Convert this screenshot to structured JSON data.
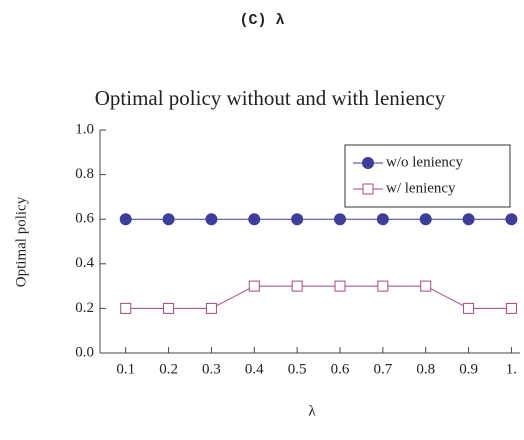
{
  "chart_data": {
    "type": "line",
    "caption": "(C) λ",
    "title": "Optimal policy without and with leniency",
    "xlabel": "λ",
    "ylabel": "Optimal policy",
    "x": [
      0.1,
      0.2,
      0.3,
      0.4,
      0.5,
      0.6,
      0.7,
      0.8,
      0.9,
      1.0
    ],
    "series": [
      {
        "name": "w/o leniency",
        "color": "#3d3d9c",
        "marker": "circle",
        "values": [
          0.6,
          0.6,
          0.6,
          0.6,
          0.6,
          0.6,
          0.6,
          0.6,
          0.6,
          0.6
        ]
      },
      {
        "name": "w/ leniency",
        "color": "#a3487f",
        "marker": "square",
        "values": [
          0.2,
          0.2,
          0.2,
          0.3,
          0.3,
          0.3,
          0.3,
          0.3,
          0.2,
          0.2
        ]
      }
    ],
    "xlim": [
      0.04,
      1.02
    ],
    "xticks": [
      0.1,
      0.2,
      0.3,
      0.4,
      0.5,
      0.6,
      0.7,
      0.8,
      0.9,
      {
        "value": 1.0,
        "label": "1."
      }
    ],
    "ylim": [
      0,
      1
    ],
    "yticks": [
      {
        "value": 0,
        "label": "0.0"
      },
      0.2,
      0.4,
      0.6,
      0.8,
      {
        "value": 1,
        "label": "1.0"
      }
    ],
    "legend": "upper right"
  }
}
